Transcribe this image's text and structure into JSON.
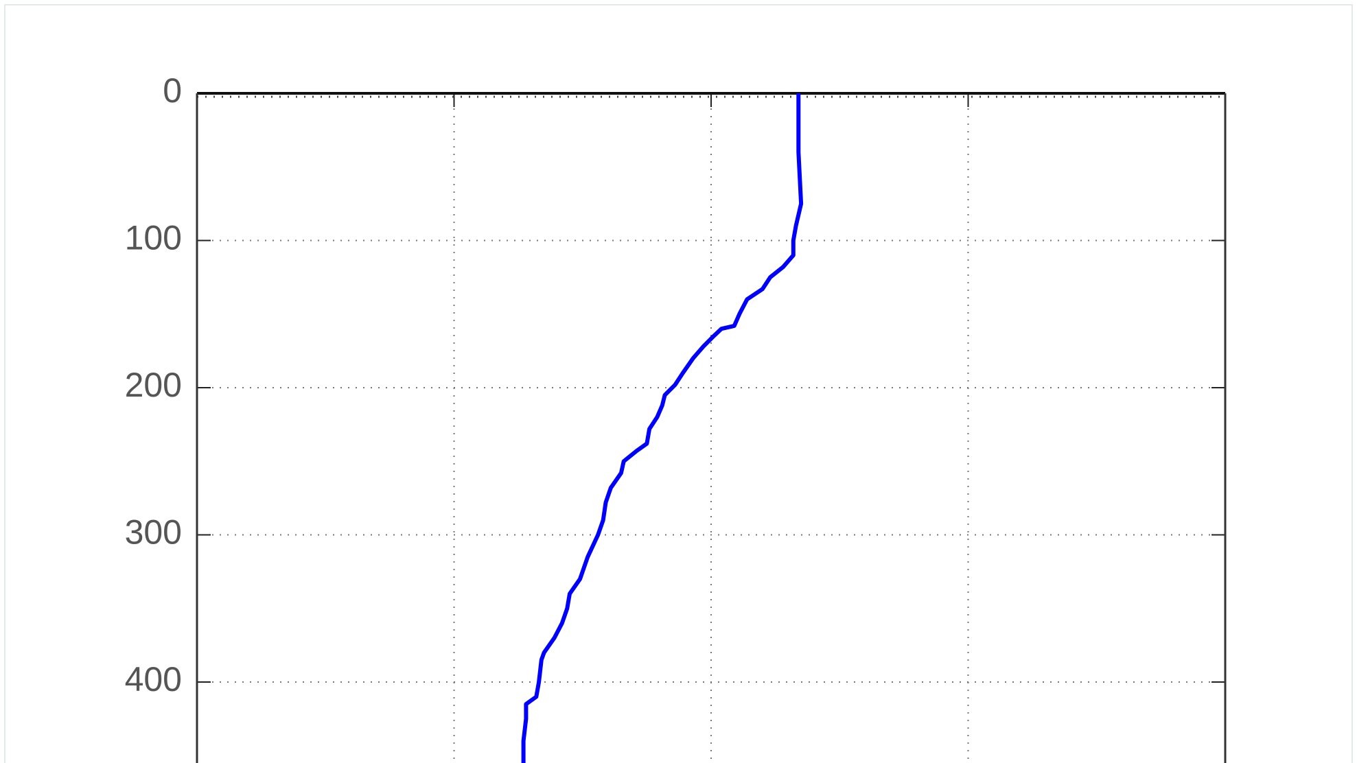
{
  "chart_data": {
    "type": "line",
    "series": [
      {
        "color": "#0000ff",
        "values": [
          2.34,
          2.34,
          2.35,
          2.33,
          2.32,
          2.32,
          2.28,
          2.23,
          2.2,
          2.14,
          2.11,
          2.09,
          2.04,
          2.01,
          1.97,
          1.93,
          1.89,
          1.86,
          1.82,
          1.81,
          1.79,
          1.76,
          1.75,
          1.71,
          1.66,
          1.65,
          1.61,
          1.59,
          1.58,
          1.56,
          1.52,
          1.49,
          1.45,
          1.44,
          1.42,
          1.39,
          1.35,
          1.34,
          1.33,
          1.32,
          1.28,
          1.28,
          1.27,
          1.27
        ],
        "y": [
          0,
          40,
          75,
          90,
          100,
          110,
          118,
          125,
          133,
          140,
          150,
          158,
          160,
          165,
          172,
          180,
          190,
          198,
          205,
          212,
          220,
          228,
          238,
          243,
          250,
          258,
          268,
          278,
          290,
          300,
          315,
          330,
          340,
          350,
          360,
          370,
          380,
          385,
          400,
          410,
          415,
          425,
          440,
          455
        ]
      }
    ],
    "xlim": [
      0,
      4
    ],
    "xticks": [
      0,
      1,
      2,
      3,
      4
    ],
    "ylim": [
      0,
      455
    ],
    "yticks": [
      0,
      100,
      200,
      300,
      400
    ],
    "y_inverted": true,
    "grid": true
  }
}
